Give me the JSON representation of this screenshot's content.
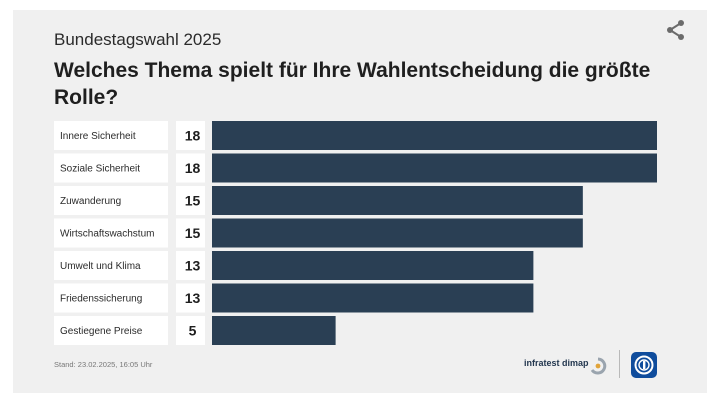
{
  "subtitle": "Bundestagswahl 2025",
  "title": "Welches Thema spielt für Ihre Wahlentscheidung die größte Rolle?",
  "footer": {
    "stand": "Stand: 23.02.2025, 16:05 Uhr",
    "source": "infratest dimap"
  },
  "icons": {
    "share": "share-icon",
    "infratest": "infratest-dimap-logo",
    "ard": "ard-logo"
  },
  "colors": {
    "bar": "#2a3f54",
    "label_bg": "#ffffff",
    "background": "#f0f0f0"
  },
  "chart_data": {
    "type": "bar",
    "orientation": "horizontal",
    "categories": [
      "Innere Sicherheit",
      "Soziale Sicherheit",
      "Zuwanderung",
      "Wirtschaftswachstum",
      "Umwelt und Klima",
      "Friedenssicherung",
      "Gestiegene Preise"
    ],
    "values": [
      18,
      18,
      15,
      15,
      13,
      13,
      5
    ],
    "unit": "%",
    "xlim": [
      0,
      18
    ],
    "grid": false,
    "legend": "none"
  }
}
